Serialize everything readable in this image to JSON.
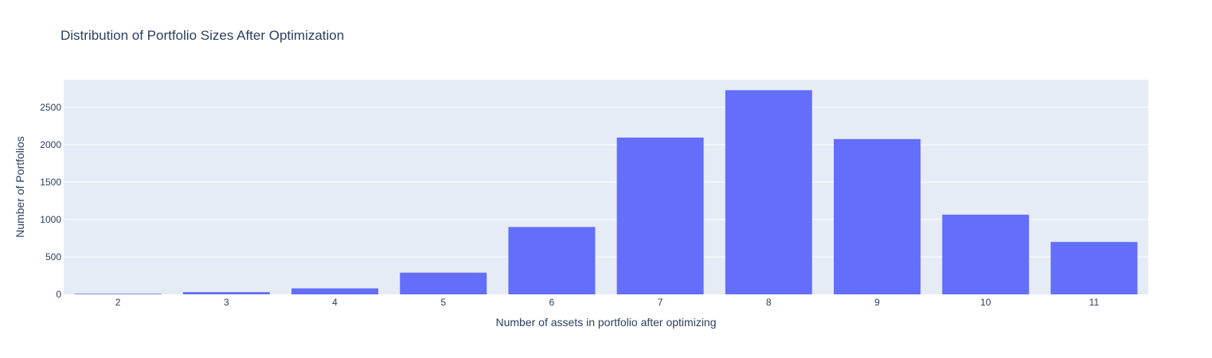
{
  "chart_data": {
    "type": "bar",
    "title": "Distribution of Portfolio Sizes After Optimization",
    "xlabel": "Number of assets in portfolio after optimizing",
    "ylabel": "Number of Portfolios",
    "categories": [
      "2",
      "3",
      "4",
      "5",
      "6",
      "7",
      "8",
      "9",
      "10",
      "11"
    ],
    "values": [
      8,
      30,
      80,
      290,
      900,
      2095,
      2728,
      2075,
      1065,
      700
    ],
    "ylim": [
      0,
      2870
    ],
    "yticks": [
      0,
      500,
      1000,
      1500,
      2000,
      2500
    ],
    "grid": true,
    "legend": "none",
    "colors": {
      "bar": "#636efa",
      "plot_bg": "#e5ecf6",
      "grid": "#ffffff",
      "text": "#2a3f5f"
    }
  }
}
